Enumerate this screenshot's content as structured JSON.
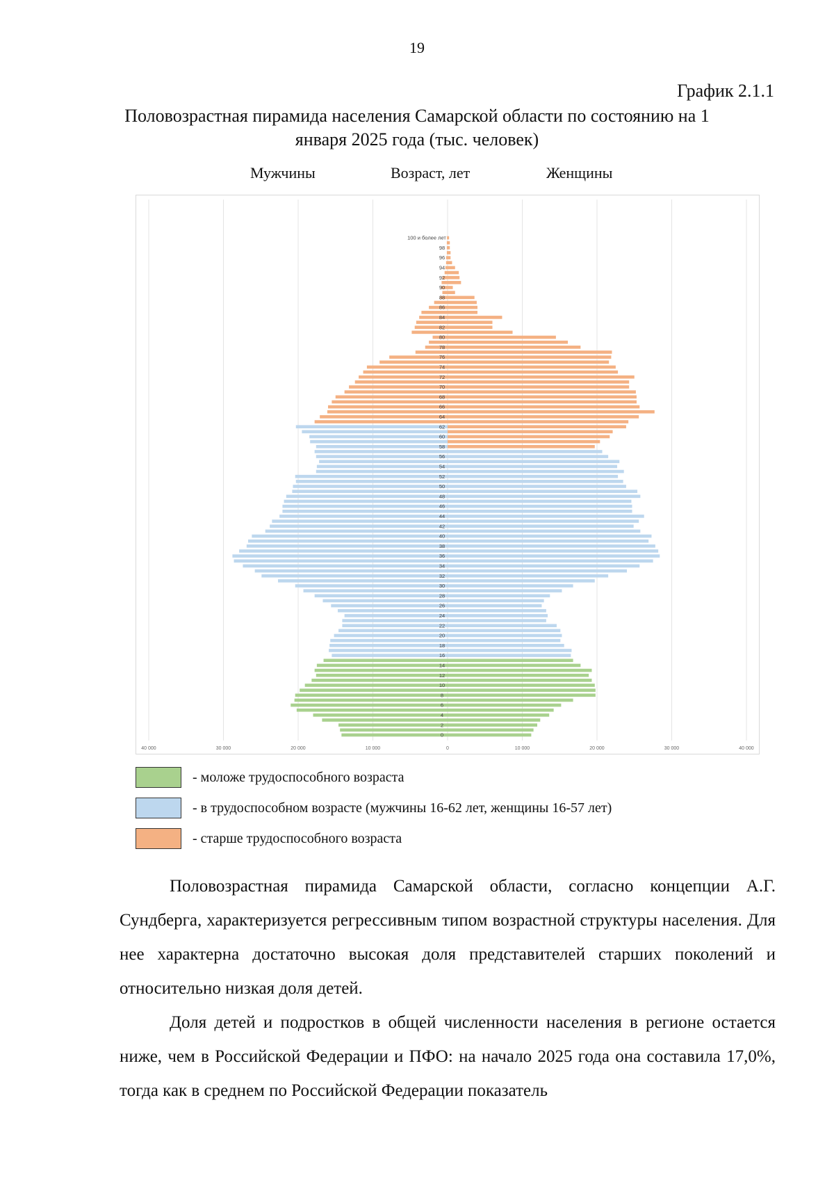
{
  "page": {
    "number": "19",
    "chart_number": "График 2.1.1",
    "title": "Половозрастная пирамида населения Самарской области по состоянию на 1 января 2025 года (тыс. человек)",
    "col_men": "Мужчины",
    "col_age": "Возраст, лет",
    "col_women": "Женщины"
  },
  "legend": [
    {
      "label": "- моложе трудоспособного возраста",
      "color": "#a9d18e"
    },
    {
      "label": "- в трудоспособном возрасте (мужчины 16-62 лет, женщины 16-57 лет)",
      "color": "#bdd7ee"
    },
    {
      "label": "- старше трудоспособного возраста",
      "color": "#f4b183"
    }
  ],
  "paragraphs": [
    "Половозрастная пирамида Самарской области, согласно концепции А.Г. Сундберга, характеризуется регрессивным типом возрастной структуры населения. Для нее характерна достаточно высокая доля представителей старших поколений и относительно низкая доля детей.",
    "Доля детей и подростков в общей численности населения в регионе остается ниже, чем в Российской Федерации и ПФО: на начало 2025 года она составила 17,0%, тогда как в среднем по Российской Федерации показатель"
  ],
  "chart_data": {
    "type": "bar",
    "orientation": "horizontal-pyramid",
    "title": "Половозрастная пирамида населения Самарской области по состоянию на 1 января 2025 года (тыс. человек)",
    "xlim": [
      -40000,
      40000
    ],
    "x_ticks": [
      "40 000",
      "30 000",
      "20 000",
      "10 000",
      "0",
      "10 000",
      "20 000",
      "30 000",
      "40 000"
    ],
    "grid": true,
    "colors": {
      "young": "#a9d18e",
      "working": "#bdd7ee",
      "old": "#f4b183"
    },
    "age_labels": [
      "0",
      "",
      "2",
      "",
      "4",
      "",
      "6",
      "",
      "8",
      "",
      "10",
      "",
      "12",
      "",
      "14",
      "",
      "16",
      "",
      "18",
      "",
      "20",
      "",
      "22",
      "",
      "24",
      "",
      "26",
      "",
      "28",
      "",
      "30",
      "",
      "32",
      "",
      "34",
      "",
      "36",
      "",
      "38",
      "",
      "40",
      "",
      "42",
      "",
      "44",
      "",
      "46",
      "",
      "48",
      "",
      "50",
      "",
      "52",
      "",
      "54",
      "",
      "56",
      "",
      "58",
      "",
      "60",
      "",
      "62",
      "",
      "64",
      "",
      "66",
      "",
      "68",
      "",
      "70",
      "",
      "72",
      "",
      "74",
      "",
      "76",
      "",
      "78",
      "",
      "80",
      "",
      "82",
      "",
      "84",
      "",
      "86",
      "",
      "88",
      "",
      "90",
      "",
      "92",
      "",
      "94",
      "",
      "96",
      "",
      "98",
      "",
      "100 и более лет"
    ],
    "men": [
      14200,
      14400,
      14600,
      16800,
      18000,
      20200,
      21000,
      20500,
      20400,
      19800,
      19100,
      18200,
      17600,
      17800,
      17500,
      16600,
      15500,
      15900,
      15800,
      15700,
      15200,
      14600,
      14100,
      14100,
      13800,
      14700,
      15600,
      16700,
      17800,
      19300,
      20400,
      22700,
      24900,
      25800,
      27400,
      28600,
      28800,
      27900,
      26900,
      26700,
      26200,
      24400,
      23800,
      23500,
      22500,
      22100,
      22100,
      21900,
      21600,
      20800,
      20700,
      20300,
      20400,
      17600,
      17500,
      17200,
      17600,
      17800,
      17600,
      18400,
      18500,
      19500,
      20300,
      17800,
      17100,
      16100,
      16000,
      15500,
      15000,
      13800,
      13200,
      12400,
      11900,
      11300,
      10800,
      9100,
      7800,
      4300,
      3000,
      2500,
      2000,
      4800,
      4400,
      4200,
      3800,
      3500,
      2500,
      1800,
      1000,
      700,
      900,
      800,
      700,
      400,
      300,
      200,
      200,
      100,
      100,
      100,
      80
    ],
    "women": [
      11200,
      11500,
      12000,
      12400,
      13600,
      14200,
      15200,
      16800,
      19800,
      19800,
      19700,
      19300,
      18900,
      19300,
      17800,
      16800,
      16500,
      16600,
      15600,
      15100,
      15300,
      15100,
      14600,
      13200,
      13400,
      13200,
      12600,
      12900,
      13700,
      15300,
      16800,
      19700,
      21500,
      24000,
      25700,
      27500,
      28400,
      28200,
      27800,
      26900,
      27300,
      25800,
      24900,
      25600,
      26300,
      24700,
      24700,
      24600,
      25800,
      25400,
      23900,
      23500,
      22800,
      23600,
      22700,
      23000,
      21500,
      20700,
      19700,
      20400,
      21700,
      22100,
      23900,
      24200,
      25600,
      27700,
      25700,
      25300,
      25300,
      25200,
      24300,
      24300,
      25000,
      22800,
      22500,
      21600,
      21900,
      22000,
      17800,
      16100,
      14500,
      8700,
      6000,
      6000,
      7300,
      4000,
      4000,
      3900,
      3600,
      1000,
      700,
      1800,
      1600,
      1500,
      1000,
      600,
      400,
      400,
      300,
      300,
      200
    ]
  }
}
